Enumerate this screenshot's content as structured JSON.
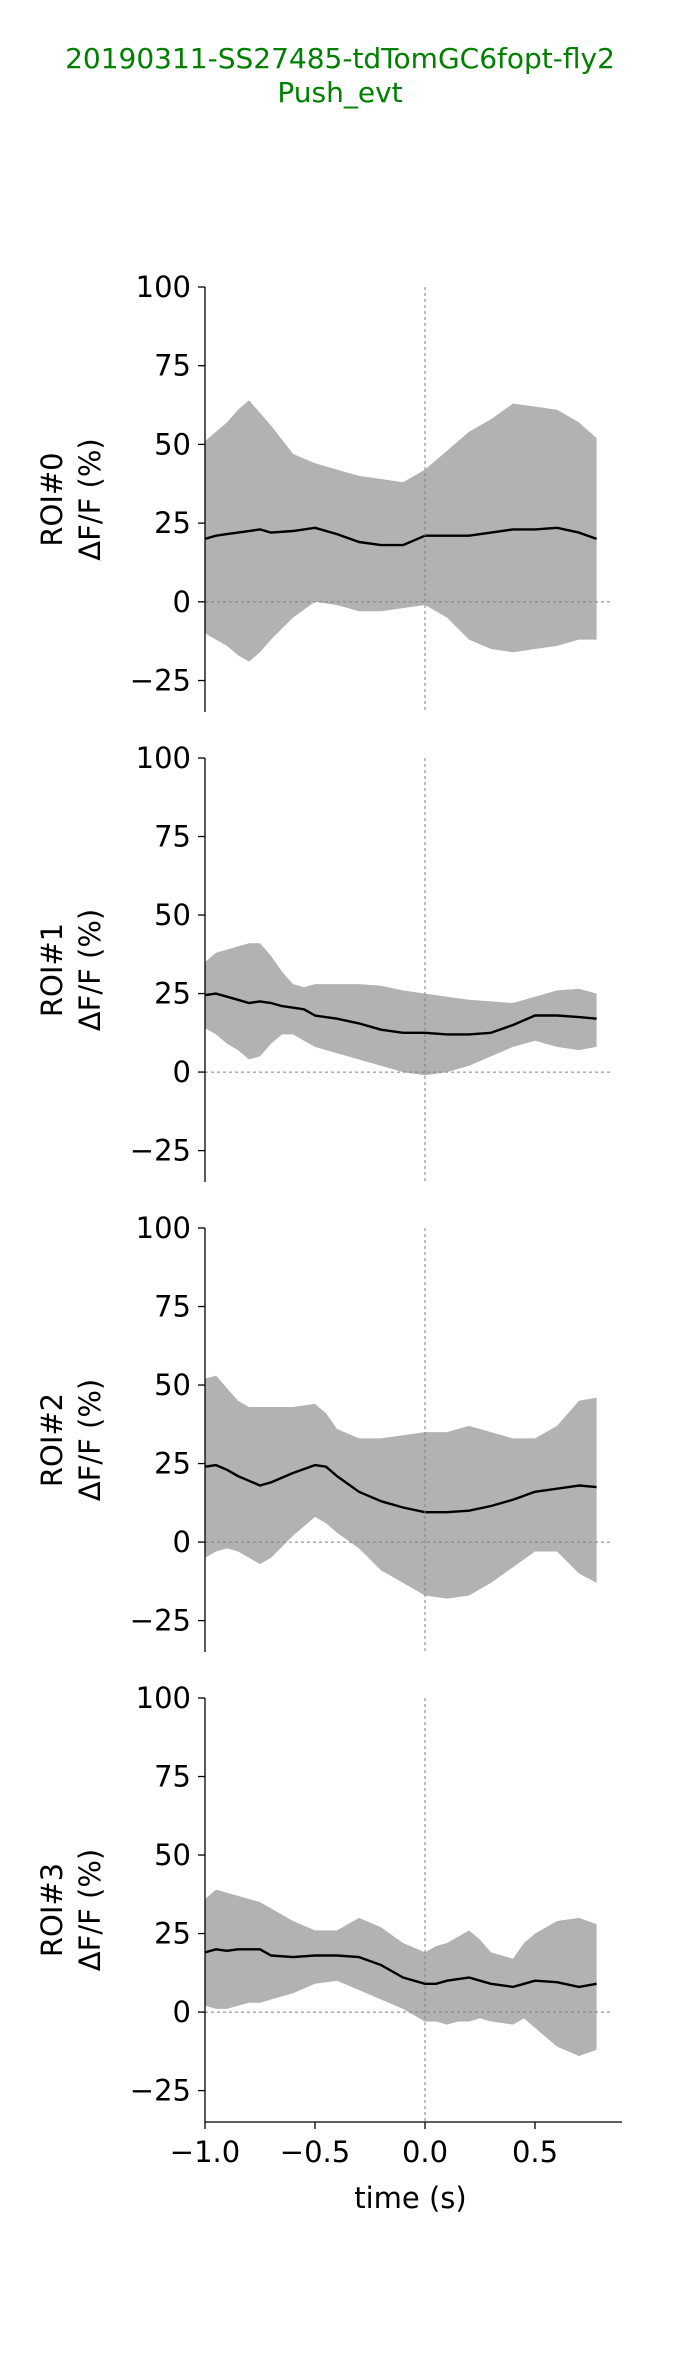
{
  "title": {
    "line1": "20190311-SS27485-tdTomGC6fopt-fly2",
    "line2": "Push_evt",
    "color": "#008000"
  },
  "chart_data": [
    {
      "type": "line",
      "ylabel": "ROI#0\nΔF/F (%)",
      "xlabel": "",
      "ylim": [
        -35,
        100
      ],
      "xlim": [
        -1.0,
        0.85
      ],
      "yticks": [
        -25,
        0,
        25,
        50,
        75,
        100
      ],
      "xticks": [
        -1.0,
        -0.5,
        0.0,
        0.5
      ],
      "show_xticks": false,
      "reference_lines": {
        "vertical": 0.0,
        "horizontal": 0
      },
      "series": [
        {
          "kind": "mean_with_band",
          "x": [
            -1.0,
            -0.95,
            -0.9,
            -0.85,
            -0.8,
            -0.75,
            -0.7,
            -0.6,
            -0.5,
            -0.4,
            -0.3,
            -0.2,
            -0.1,
            0.0,
            0.1,
            0.2,
            0.3,
            0.4,
            0.5,
            0.6,
            0.7,
            0.78
          ],
          "mean": [
            20,
            21,
            21.5,
            22,
            22.5,
            23,
            22,
            22.5,
            23.5,
            21.5,
            19,
            18,
            18,
            21,
            21,
            21,
            22,
            23,
            23,
            23.5,
            22,
            20
          ],
          "upper": [
            51,
            54,
            57,
            61,
            64,
            60,
            56,
            47,
            44,
            42,
            40,
            39,
            38,
            42,
            48,
            54,
            58,
            63,
            62,
            61,
            57,
            52
          ],
          "lower": [
            -10,
            -12,
            -14,
            -17,
            -19,
            -16,
            -12,
            -5,
            0,
            -1,
            -3,
            -3,
            -2,
            -1,
            -5,
            -12,
            -15,
            -16,
            -15,
            -14,
            -12,
            -12
          ]
        }
      ],
      "line_color": "#000000",
      "band_color": "#b2b2b2"
    },
    {
      "type": "line",
      "ylabel": "ROI#1\nΔF/F (%)",
      "xlabel": "",
      "ylim": [
        -35,
        100
      ],
      "xlim": [
        -1.0,
        0.85
      ],
      "yticks": [
        -25,
        0,
        25,
        50,
        75,
        100
      ],
      "xticks": [
        -1.0,
        -0.5,
        0.0,
        0.5
      ],
      "show_xticks": false,
      "reference_lines": {
        "vertical": 0.0,
        "horizontal": 0
      },
      "series": [
        {
          "kind": "mean_with_band",
          "x": [
            -1.0,
            -0.95,
            -0.9,
            -0.85,
            -0.8,
            -0.75,
            -0.7,
            -0.65,
            -0.6,
            -0.55,
            -0.5,
            -0.4,
            -0.3,
            -0.2,
            -0.1,
            0.0,
            0.1,
            0.2,
            0.3,
            0.4,
            0.5,
            0.6,
            0.7,
            0.78
          ],
          "mean": [
            24.5,
            25,
            24,
            23,
            22,
            22.5,
            22,
            21,
            20.5,
            20,
            18,
            17,
            15.5,
            13.5,
            12.5,
            12.5,
            12,
            12,
            12.5,
            15,
            18,
            18,
            17.5,
            17
          ],
          "upper": [
            35,
            38,
            39,
            40,
            41,
            41,
            37,
            32,
            28,
            27,
            28,
            28,
            28,
            27.5,
            26,
            25,
            24,
            23,
            22.5,
            22,
            24,
            26,
            26.5,
            25
          ],
          "lower": [
            14,
            12,
            9,
            7,
            4,
            5,
            9,
            12,
            12,
            10,
            8,
            6,
            4,
            2,
            0,
            -1,
            0,
            2,
            5,
            8,
            10,
            8,
            7,
            8
          ]
        }
      ],
      "line_color": "#000000",
      "band_color": "#b2b2b2"
    },
    {
      "type": "line",
      "ylabel": "ROI#2\nΔF/F (%)",
      "xlabel": "",
      "ylim": [
        -35,
        100
      ],
      "xlim": [
        -1.0,
        0.85
      ],
      "yticks": [
        -25,
        0,
        25,
        50,
        75,
        100
      ],
      "xticks": [
        -1.0,
        -0.5,
        0.0,
        0.5
      ],
      "show_xticks": false,
      "reference_lines": {
        "vertical": 0.0,
        "horizontal": 0
      },
      "series": [
        {
          "kind": "mean_with_band",
          "x": [
            -1.0,
            -0.95,
            -0.9,
            -0.85,
            -0.8,
            -0.75,
            -0.7,
            -0.6,
            -0.5,
            -0.45,
            -0.4,
            -0.3,
            -0.2,
            -0.1,
            0.0,
            0.1,
            0.2,
            0.3,
            0.4,
            0.5,
            0.6,
            0.7,
            0.78
          ],
          "mean": [
            24,
            24.5,
            23,
            21,
            19.5,
            18,
            19,
            22,
            24.5,
            24,
            21,
            16,
            13,
            11,
            9.5,
            9.5,
            10,
            11.5,
            13.5,
            16,
            17,
            18,
            17.5
          ],
          "upper": [
            52,
            53,
            49,
            45,
            43,
            43,
            43,
            43,
            44,
            41,
            36,
            33,
            33,
            34,
            35,
            35,
            37,
            35,
            33,
            33,
            37,
            45,
            46
          ],
          "lower": [
            -5,
            -3,
            -2,
            -3,
            -5,
            -7,
            -5,
            2,
            8,
            6,
            3,
            -2,
            -9,
            -13,
            -17,
            -18,
            -17,
            -13,
            -8,
            -3,
            -3,
            -10,
            -13
          ]
        }
      ],
      "line_color": "#000000",
      "band_color": "#b2b2b2"
    },
    {
      "type": "line",
      "ylabel": "ROI#3\nΔF/F (%)",
      "xlabel": "time (s)",
      "ylim": [
        -35,
        100
      ],
      "xlim": [
        -1.0,
        0.85
      ],
      "yticks": [
        -25,
        0,
        25,
        50,
        75,
        100
      ],
      "xticks": [
        -1.0,
        -0.5,
        0.0,
        0.5
      ],
      "xtick_labels": [
        "−1.0",
        "−0.5",
        "0.0",
        "0.5"
      ],
      "show_xticks": true,
      "reference_lines": {
        "vertical": 0.0,
        "horizontal": 0
      },
      "series": [
        {
          "kind": "mean_with_band",
          "x": [
            -1.0,
            -0.95,
            -0.9,
            -0.85,
            -0.8,
            -0.75,
            -0.7,
            -0.6,
            -0.5,
            -0.4,
            -0.3,
            -0.2,
            -0.1,
            0.0,
            0.05,
            0.1,
            0.15,
            0.2,
            0.25,
            0.3,
            0.4,
            0.45,
            0.5,
            0.6,
            0.7,
            0.78
          ],
          "mean": [
            19,
            20,
            19.5,
            20,
            20,
            20,
            18,
            17.5,
            18,
            18,
            17.5,
            15,
            11,
            9,
            9,
            10,
            10.5,
            11,
            10,
            9,
            8,
            9,
            10,
            9.5,
            8,
            9
          ],
          "upper": [
            36,
            39,
            38,
            37,
            36,
            35,
            33,
            29,
            26,
            26,
            30,
            27,
            22,
            19,
            21,
            22,
            24,
            26,
            23,
            19,
            17,
            22,
            25,
            29,
            30,
            28
          ],
          "lower": [
            2,
            1,
            1,
            2,
            3,
            3,
            4,
            6,
            9,
            10,
            7,
            4,
            1,
            -3,
            -3,
            -4,
            -3,
            -3,
            -2,
            -3,
            -4,
            -2,
            -5,
            -11,
            -14,
            -12
          ]
        }
      ],
      "line_color": "#000000",
      "band_color": "#b2b2b2"
    }
  ]
}
